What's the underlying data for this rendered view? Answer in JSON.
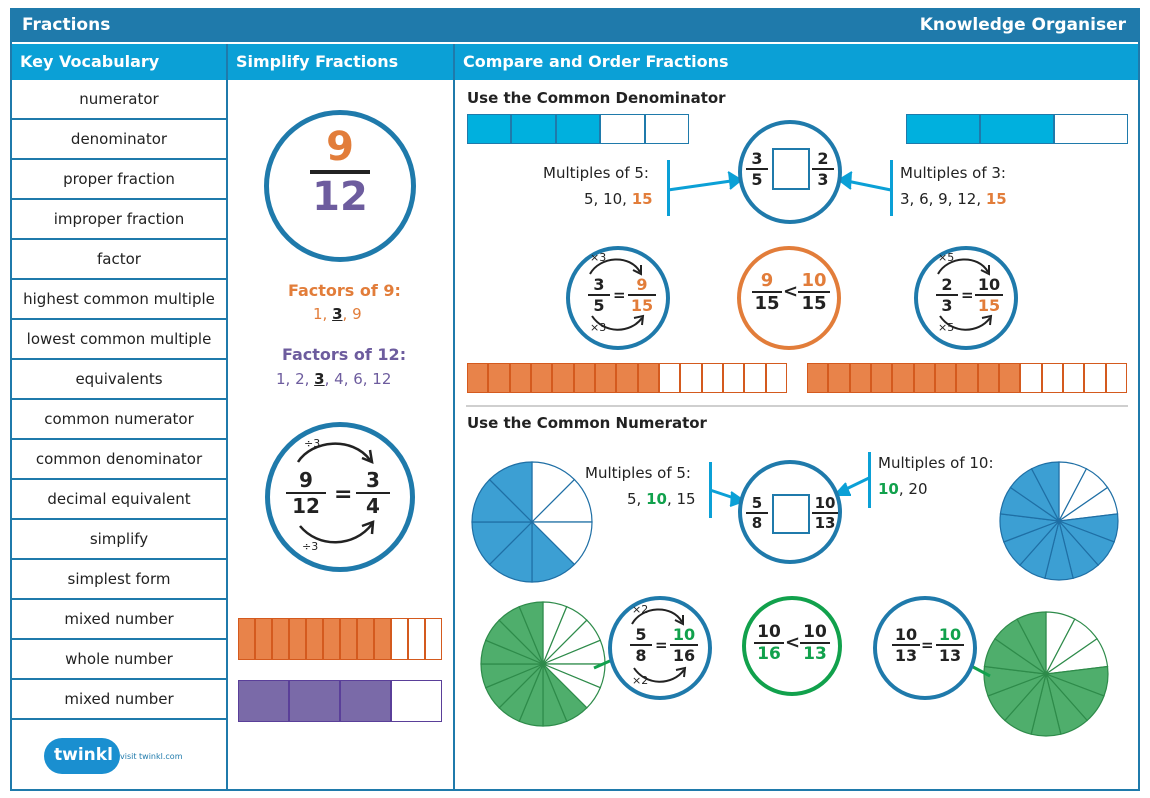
{
  "header": {
    "title": "Fractions",
    "subtitle": "Knowledge Organiser"
  },
  "sections": {
    "vocab": "Key Vocabulary",
    "simplify": "Simplify Fractions",
    "compare": "Compare and Order Fractions"
  },
  "vocabulary": [
    "numerator",
    "denominator",
    "proper fraction",
    "improper fraction",
    "factor",
    "highest common multiple",
    "lowest common multiple",
    "equivalents",
    "common numerator",
    "common denominator",
    "decimal equivalent",
    "simplify",
    "simplest form",
    "mixed number",
    "whole number",
    "mixed number"
  ],
  "footer": {
    "logo": "twinkl",
    "site": "visit twinkl.com"
  },
  "simplify": {
    "big": {
      "num": "9",
      "den": "12"
    },
    "f9": {
      "label": "Factors of 9:",
      "a": "1, ",
      "b": "3",
      "c": ", 9"
    },
    "f12": {
      "label": "Factors of 12:",
      "a": "1, 2, ",
      "b": "3",
      "c": ", 4, 6, 12"
    },
    "eq": {
      "n1": "9",
      "d1": "12",
      "n2": "3",
      "d2": "4",
      "op": "=",
      "top": "÷3",
      "bot": "÷3"
    },
    "bars": {
      "orange": {
        "filled": 9,
        "total": 12,
        "color": "#e8834a"
      },
      "purple": {
        "filled": 3,
        "total": 4,
        "color": "#7a6aa8"
      }
    }
  },
  "denominator": {
    "title": "Use the Common Denominator",
    "left_bar": {
      "filled": 3,
      "total": 5,
      "color": "#00b0de"
    },
    "right_bar": {
      "filled": 2,
      "total": 3,
      "color": "#00b0de"
    },
    "m5": {
      "label": "Multiples of 5:",
      "a": "5, 10, ",
      "b": "15"
    },
    "m3": {
      "label": "Multiples of 3:",
      "a": "3, 6, 9, 12, ",
      "b": "15"
    },
    "center": {
      "n1": "3",
      "d1": "5",
      "n2": "2",
      "d2": "3"
    },
    "c1": {
      "n1": "3",
      "d1": "5",
      "n2": "9",
      "d2": "15",
      "op": "=",
      "top": "×3",
      "bot": "×3"
    },
    "c2": {
      "n1": "9",
      "d1": "15",
      "n2": "10",
      "d2": "15",
      "op": "<"
    },
    "c3": {
      "n1": "2",
      "d1": "3",
      "n2": "10",
      "d2": "15",
      "op": "=",
      "top": "×5",
      "bot": "×5"
    },
    "bottom_bars": [
      {
        "filled": 9,
        "total": 15,
        "color": "#e8834a"
      },
      {
        "filled": 10,
        "total": 15,
        "color": "#e8834a"
      }
    ]
  },
  "numerator": {
    "title": "Use the Common Numerator",
    "m5": {
      "label": "Multiples of 5:",
      "a": "5, ",
      "b": "10",
      "c": ", 15"
    },
    "m10": {
      "label": "Multiples of 10:",
      "b": "10",
      "c": ", 20"
    },
    "center": {
      "n1": "5",
      "d1": "8",
      "n2": "10",
      "d2": "13"
    },
    "c1": {
      "n1": "5",
      "d1": "8",
      "n2": "10",
      "d2": "16",
      "op": "=",
      "top": "×2",
      "bot": "×2"
    },
    "c2": {
      "n1": "10",
      "d1": "16",
      "n2": "10",
      "d2": "13",
      "op": "<"
    },
    "c3": {
      "n1": "10",
      "d1": "13",
      "n2": "10",
      "d2": "13",
      "op": "="
    },
    "pies": [
      {
        "filled": 5,
        "total": 8,
        "color": "#3c9fd3"
      },
      {
        "filled": 10,
        "total": 13,
        "color": "#3c9fd3"
      },
      {
        "filled": 10,
        "total": 16,
        "color": "#4fae6c"
      },
      {
        "filled": 10,
        "total": 13,
        "color": "#4fae6c"
      }
    ]
  },
  "colors": {
    "dark_blue": "#1f7aab",
    "light_blue": "#0ba0d6",
    "orange": "#e27d3a",
    "purple": "#6d5c9e",
    "green": "#11a14c"
  }
}
